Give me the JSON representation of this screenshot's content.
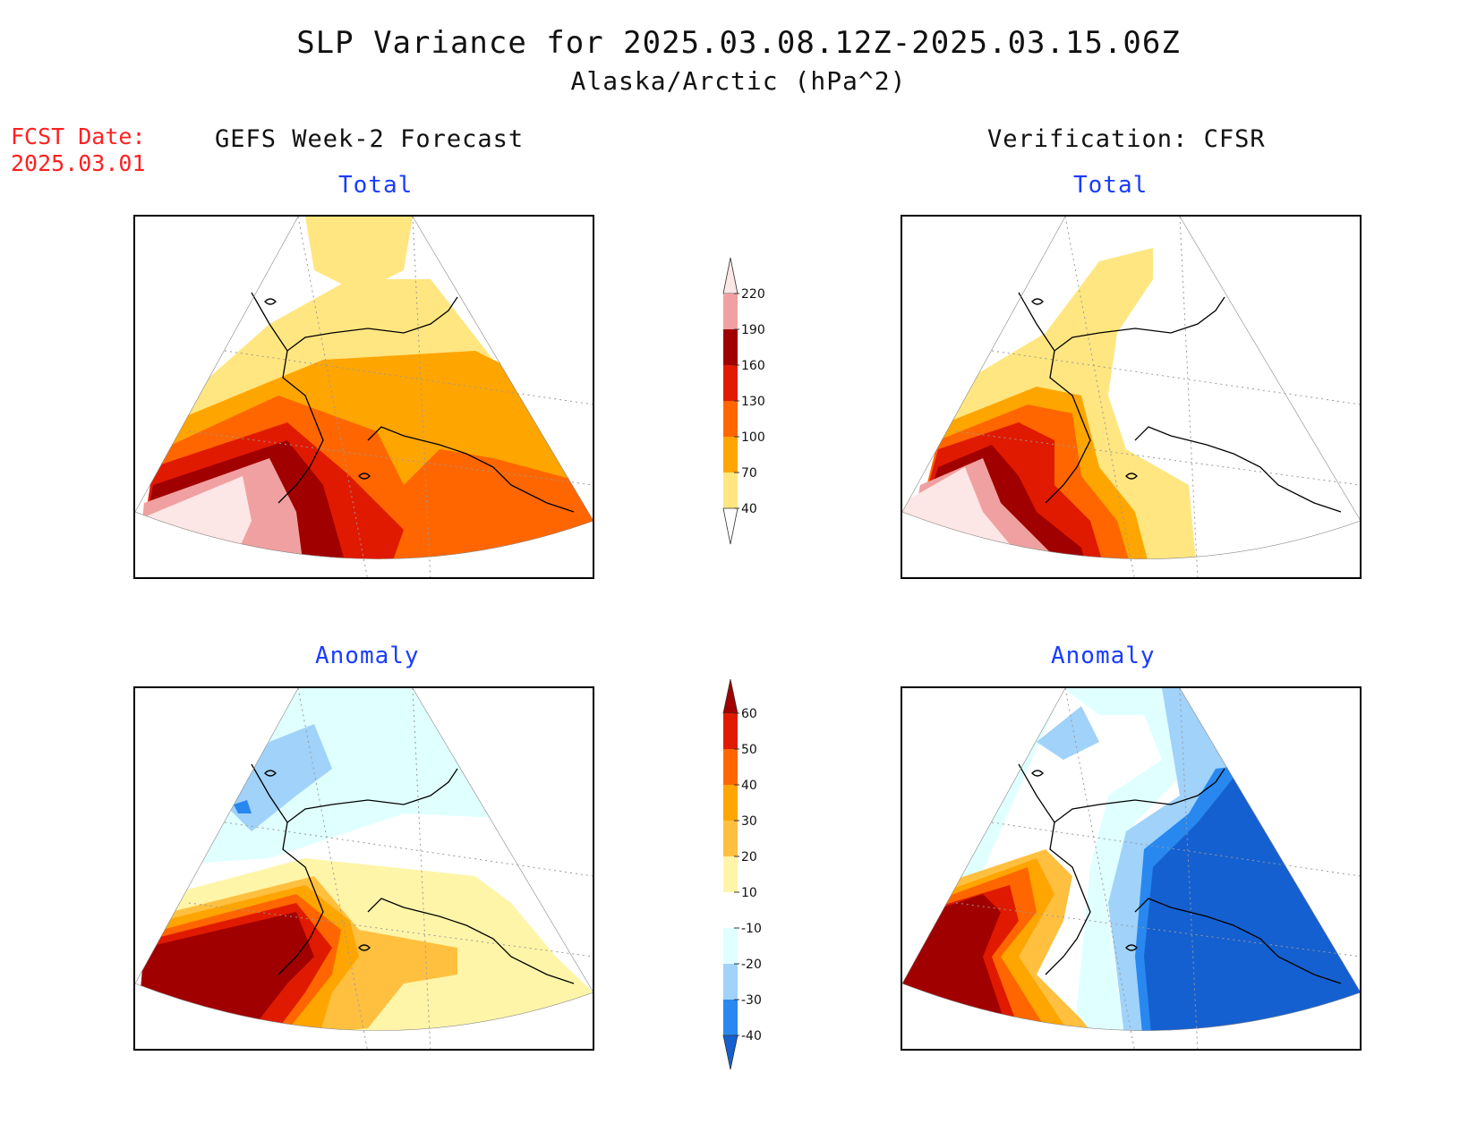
{
  "title": "SLP Variance for 2025.03.08.12Z-2025.03.15.06Z",
  "subtitle": "Alaska/Arctic (hPa^2)",
  "fcst_label": "FCST Date:",
  "fcst_date": "2025.03.01",
  "left_column_title": "GEFS Week-2 Forecast",
  "right_column_title": "Verification: CFSR",
  "panels": {
    "top_left": "Total",
    "top_right": "Total",
    "bottom_left": "Anomaly",
    "bottom_right": "Anomaly"
  },
  "colorbars": {
    "total": {
      "labels": [
        "220",
        "190",
        "160",
        "130",
        "100",
        "70",
        "40"
      ],
      "colors": [
        "#fde6e6",
        "#f0a0a0",
        "#a00000",
        "#e01a00",
        "#ff6600",
        "#ffa500",
        "#ffe680",
        "#ffffff"
      ]
    },
    "anomaly": {
      "labels": [
        "60",
        "50",
        "40",
        "30",
        "20",
        "10",
        "-10",
        "-20",
        "-30",
        "-40"
      ],
      "colors": [
        "#a00000",
        "#e01a00",
        "#ff6600",
        "#ffa500",
        "#ffc040",
        "#fff5a8",
        "#ffffff",
        "#e0ffff",
        "#a0d2fa",
        "#2888f0",
        "#1560d0"
      ]
    }
  }
}
